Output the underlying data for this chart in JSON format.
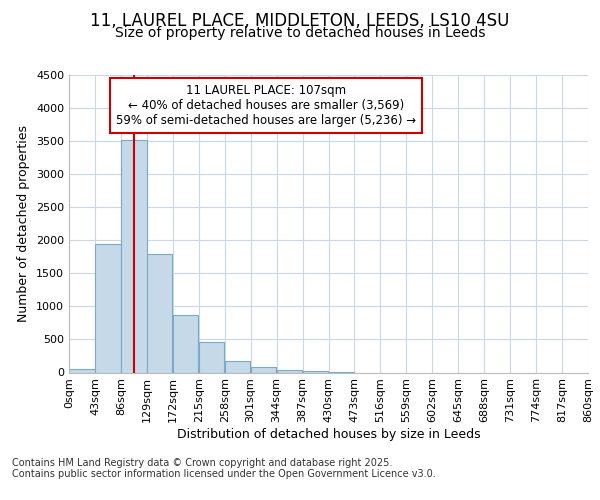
{
  "title_line1": "11, LAUREL PLACE, MIDDLETON, LEEDS, LS10 4SU",
  "title_line2": "Size of property relative to detached houses in Leeds",
  "xlabel": "Distribution of detached houses by size in Leeds",
  "ylabel": "Number of detached properties",
  "bin_labels": [
    "0sqm",
    "43sqm",
    "86sqm",
    "129sqm",
    "172sqm",
    "215sqm",
    "258sqm",
    "301sqm",
    "344sqm",
    "387sqm",
    "430sqm",
    "473sqm",
    "516sqm",
    "559sqm",
    "602sqm",
    "645sqm",
    "688sqm",
    "731sqm",
    "774sqm",
    "817sqm",
    "860sqm"
  ],
  "bin_edges": [
    0,
    43,
    86,
    129,
    172,
    215,
    258,
    301,
    344,
    387,
    430,
    473,
    516,
    559,
    602,
    645,
    688,
    731,
    774,
    817,
    860
  ],
  "bar_heights": [
    50,
    1950,
    3520,
    1800,
    875,
    460,
    175,
    90,
    40,
    20,
    5,
    0,
    0,
    0,
    0,
    0,
    0,
    0,
    0,
    0
  ],
  "bar_color": "#c5d9e8",
  "bar_edge_color": "#7baac8",
  "property_size": 107,
  "vline_color": "#cc0000",
  "ylim": [
    0,
    4500
  ],
  "yticks": [
    0,
    500,
    1000,
    1500,
    2000,
    2500,
    3000,
    3500,
    4000,
    4500
  ],
  "annotation_text": "11 LAUREL PLACE: 107sqm\n← 40% of detached houses are smaller (3,569)\n59% of semi-detached houses are larger (5,236) →",
  "annotation_box_color": "#cc0000",
  "footer_text": "Contains HM Land Registry data © Crown copyright and database right 2025.\nContains public sector information licensed under the Open Government Licence v3.0.",
  "background_color": "#ffffff",
  "grid_color": "#c8d8e8",
  "title_fontsize": 12,
  "subtitle_fontsize": 10,
  "axis_label_fontsize": 9,
  "tick_fontsize": 8,
  "annotation_fontsize": 8.5,
  "footer_fontsize": 7
}
